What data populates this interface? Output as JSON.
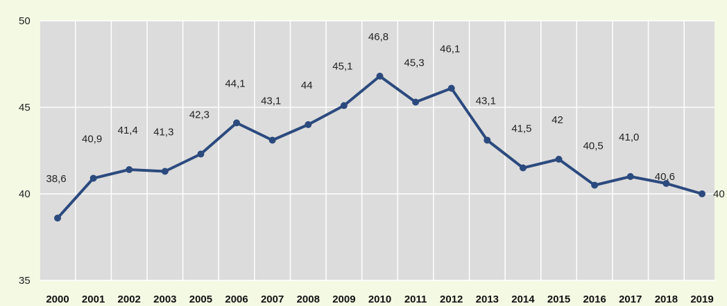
{
  "chart_data": {
    "type": "line",
    "categories": [
      "2000",
      "2001",
      "2002",
      "2003",
      "2005",
      "2006",
      "2007",
      "2008",
      "2009",
      "2010",
      "2011",
      "2012",
      "2013",
      "2014",
      "2015",
      "2016",
      "2017",
      "2018",
      "2019"
    ],
    "series": [
      {
        "values": [
          38.6,
          40.9,
          41.4,
          41.3,
          42.3,
          44.1,
          43.1,
          44,
          45.1,
          46.8,
          45.3,
          46.1,
          43.1,
          41.5,
          42,
          40.5,
          41.0,
          40.6,
          40
        ],
        "labels": [
          "38,6",
          "40,9",
          "41,4",
          "41,3",
          "42,3",
          "44,1",
          "43,1",
          "44",
          "45,1",
          "46,8",
          "45,3",
          "46,1",
          "43,1",
          "41,5",
          "42",
          "40,5",
          "41,0",
          "40,6",
          "40"
        ],
        "color": "#2b4a7e"
      }
    ],
    "ylim": [
      35,
      50
    ],
    "yticks": [
      "35",
      "40",
      "45",
      "50"
    ],
    "grid": true,
    "plot_background": "#dcdcdc",
    "grid_color": "#ffffff"
  }
}
